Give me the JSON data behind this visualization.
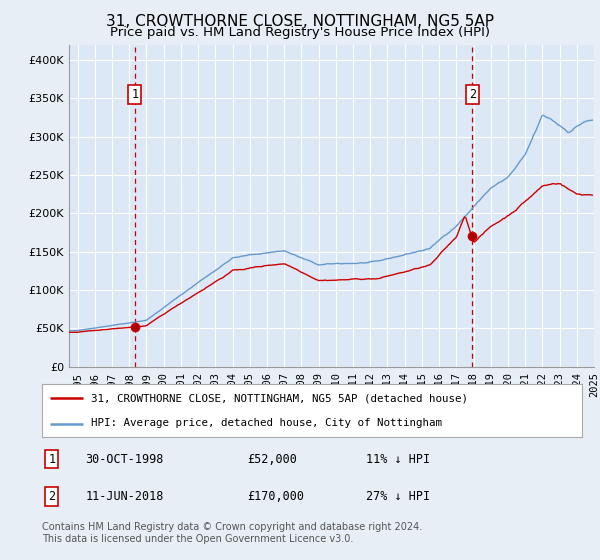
{
  "title": "31, CROWTHORNE CLOSE, NOTTINGHAM, NG5 5AP",
  "subtitle": "Price paid vs. HM Land Registry's House Price Index (HPI)",
  "title_fontsize": 11,
  "subtitle_fontsize": 9.5,
  "bg_color": "#e8eef5",
  "plot_bg_color": "#dce8f5",
  "grid_color": "#c8d8e8",
  "ylabel_ticks": [
    "£0",
    "£50K",
    "£100K",
    "£150K",
    "£200K",
    "£250K",
    "£300K",
    "£350K",
    "£400K"
  ],
  "ylabel_values": [
    0,
    50000,
    100000,
    150000,
    200000,
    250000,
    300000,
    350000,
    400000
  ],
  "ylim": [
    0,
    420000
  ],
  "xlim_start": 1995.0,
  "xlim_end": 2025.5,
  "xtick_labels": [
    "1995",
    "1996",
    "1997",
    "1998",
    "1999",
    "2000",
    "2001",
    "2002",
    "2003",
    "2004",
    "2005",
    "2006",
    "2007",
    "2008",
    "2009",
    "2010",
    "2011",
    "2012",
    "2013",
    "2014",
    "2015",
    "2016",
    "2017",
    "2018",
    "2019",
    "2020",
    "2021",
    "2022",
    "2023",
    "2024",
    "2025"
  ],
  "sale1_x": 1998.83,
  "sale1_y": 52000,
  "sale1_label": "1",
  "sale2_x": 2018.44,
  "sale2_y": 170000,
  "sale2_label": "2",
  "vline_color": "#cc0000",
  "hpi_line_color": "#6699cc",
  "price_line_color": "#cc0000",
  "legend_label1": "31, CROWTHORNE CLOSE, NOTTINGHAM, NG5 5AP (detached house)",
  "legend_label2": "HPI: Average price, detached house, City of Nottingham",
  "footnote": "Contains HM Land Registry data © Crown copyright and database right 2024.\nThis data is licensed under the Open Government Licence v3.0.",
  "table_rows": [
    [
      "1",
      "30-OCT-1998",
      "£52,000",
      "11% ↓ HPI"
    ],
    [
      "2",
      "11-JUN-2018",
      "£170,000",
      "27% ↓ HPI"
    ]
  ]
}
